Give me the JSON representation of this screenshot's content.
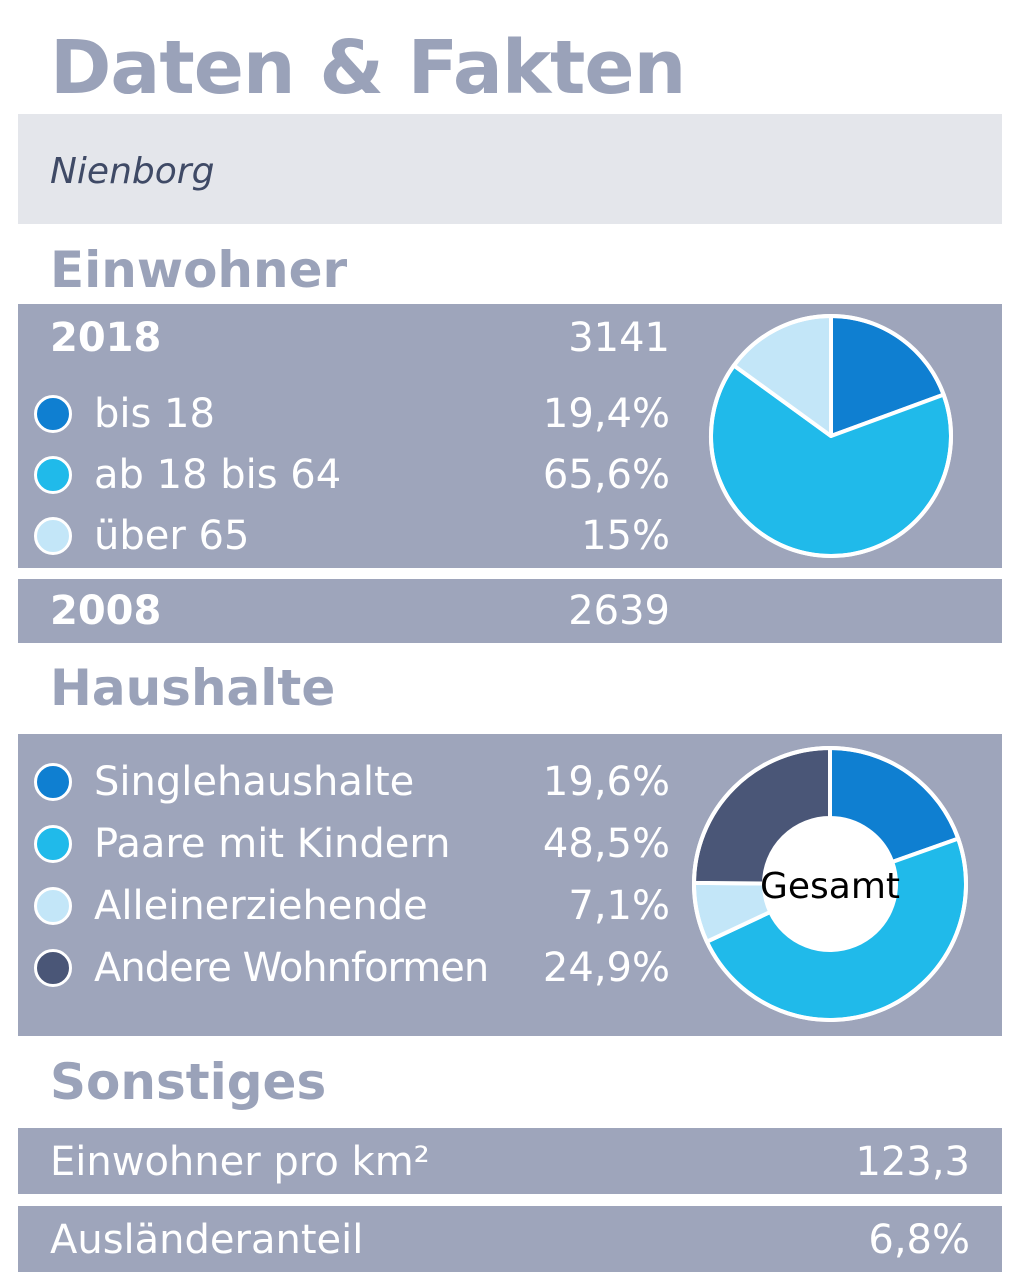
{
  "title": "Daten & Fakten",
  "location": "Nienborg",
  "colors": {
    "dark_blue": "#0f7fd1",
    "cyan": "#20baea",
    "light_blue": "#c3e6f8",
    "slate": "#4a5677",
    "band": "#9ea5bb",
    "heading": "#9aa2b9"
  },
  "einwohner": {
    "heading": "Einwohner",
    "year_2018": {
      "label": "2018",
      "value": "3141"
    },
    "year_2008": {
      "label": "2008",
      "value": "2639"
    },
    "legend": [
      {
        "label": "bis 18",
        "value": "19,4%",
        "color": "#0f7fd1"
      },
      {
        "label": "ab 18 bis 64",
        "value": "65,6%",
        "color": "#20baea"
      },
      {
        "label": "über 65",
        "value": "15%",
        "color": "#c3e6f8"
      }
    ]
  },
  "haushalte": {
    "heading": "Haushalte",
    "center_label": "Gesamt",
    "legend": [
      {
        "label": "Singlehaushalte",
        "value": "19,6%",
        "color": "#0f7fd1"
      },
      {
        "label": "Paare mit Kindern",
        "value": "48,5%",
        "color": "#20baea"
      },
      {
        "label": "Alleinerziehende",
        "value": "7,1%",
        "color": "#c3e6f8"
      },
      {
        "label": "Andere Wohnformen",
        "value": "24,9%",
        "color": "#4a5677"
      }
    ]
  },
  "sonstiges": {
    "heading": "Sonstiges",
    "rows": [
      {
        "label": "Einwohner pro km²",
        "value": "123,3"
      },
      {
        "label": "Ausländeranteil",
        "value": "6,8%"
      }
    ]
  },
  "chart_data": [
    {
      "type": "pie",
      "categories": [
        "bis 18",
        "ab 18 bis 64",
        "über 65"
      ],
      "values": [
        19.4,
        65.6,
        15
      ],
      "colors": [
        "#0f7fd1",
        "#20baea",
        "#c3e6f8"
      ]
    },
    {
      "type": "pie",
      "subtype": "donut",
      "center_label": "Gesamt",
      "categories": [
        "Singlehaushalte",
        "Paare mit Kindern",
        "Alleinerziehende",
        "Andere Wohnformen"
      ],
      "values": [
        19.6,
        48.5,
        7.1,
        24.9
      ],
      "colors": [
        "#0f7fd1",
        "#20baea",
        "#c3e6f8",
        "#4a5677"
      ]
    }
  ]
}
